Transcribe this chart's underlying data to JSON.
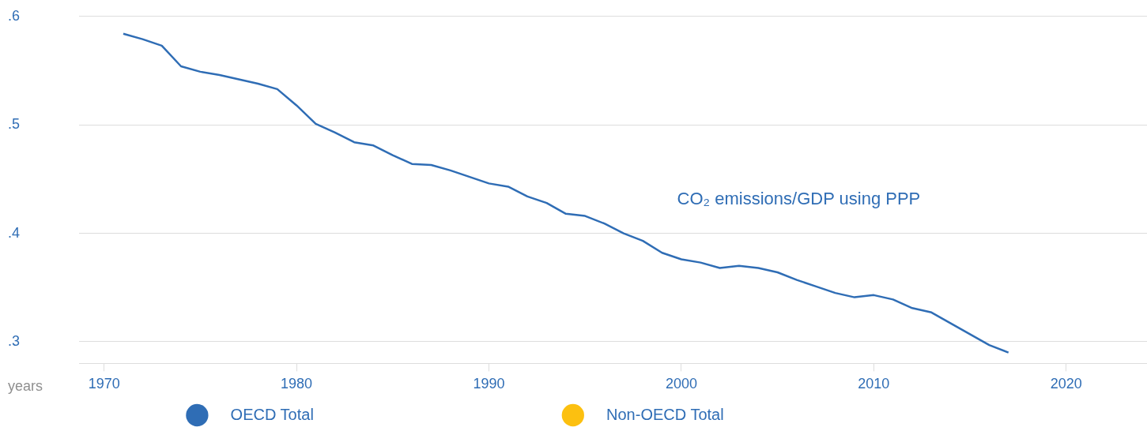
{
  "chart_data": {
    "type": "line",
    "xlabel": "years",
    "x": [
      1971,
      1972,
      1973,
      1974,
      1975,
      1976,
      1977,
      1978,
      1979,
      1980,
      1981,
      1982,
      1983,
      1984,
      1985,
      1986,
      1987,
      1988,
      1989,
      1990,
      1991,
      1992,
      1993,
      1994,
      1995,
      1996,
      1997,
      1998,
      1999,
      2000,
      2001,
      2002,
      2003,
      2004,
      2005,
      2006,
      2007,
      2008,
      2009,
      2010,
      2011,
      2012,
      2013,
      2014,
      2015,
      2016,
      2017
    ],
    "series": [
      {
        "name": "OECD Total",
        "color": "#2f6db5",
        "values": [
          0.584,
          0.579,
          0.573,
          0.554,
          0.549,
          0.546,
          0.542,
          0.538,
          0.533,
          0.518,
          0.501,
          0.493,
          0.484,
          0.481,
          0.472,
          0.464,
          0.463,
          0.458,
          0.452,
          0.446,
          0.443,
          0.434,
          0.428,
          0.418,
          0.416,
          0.409,
          0.4,
          0.393,
          0.382,
          0.376,
          0.373,
          0.368,
          0.37,
          0.368,
          0.364,
          0.357,
          0.351,
          0.345,
          0.341,
          0.343,
          0.339,
          0.331,
          0.327,
          0.317,
          0.307,
          0.297,
          0.29
        ]
      },
      {
        "name": "Non-OECD Total",
        "color": "#fcc010",
        "values": [
          null,
          null,
          null,
          null,
          null,
          null,
          null,
          null,
          null,
          null,
          null,
          null,
          null,
          null,
          null,
          null,
          null,
          null,
          null,
          null,
          null,
          null,
          null,
          null,
          null,
          null,
          null,
          null,
          null,
          null,
          null,
          null,
          null,
          null,
          null,
          null,
          null,
          null,
          null,
          null,
          null,
          null,
          null,
          null,
          null,
          null,
          null
        ]
      }
    ],
    "annotations": [
      "CO₂ emissions/GDP using PPP"
    ],
    "xlim": [
      1968.7,
      2024.2
    ],
    "xticks": [
      1970,
      1980,
      1990,
      2000,
      2010,
      2020
    ],
    "ylim": [
      0.28,
      0.6
    ],
    "yticks": [
      {
        "value": 0.3,
        "label": ".3"
      },
      {
        "value": 0.4,
        "label": ".4"
      },
      {
        "value": 0.5,
        "label": ".5"
      },
      {
        "value": 0.6,
        "label": ".6"
      }
    ],
    "grid": "y",
    "legend": "bottom",
    "marker": "none",
    "line_style": "solid"
  }
}
